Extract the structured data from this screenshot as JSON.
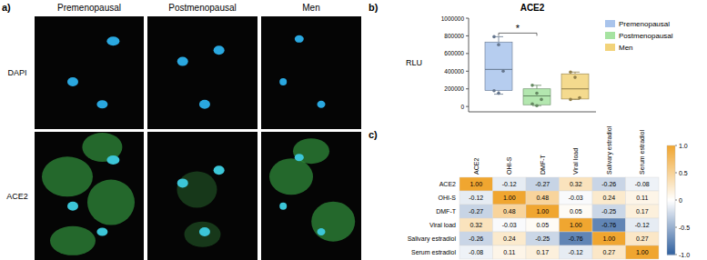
{
  "image_panel": {
    "label": "a)",
    "columns": [
      "Premenopausal",
      "Postmenopausal",
      "Men"
    ],
    "rows": [
      "DAPI",
      "ACE2"
    ]
  },
  "chart_data": [
    {
      "type": "box",
      "label": "b)",
      "title": "ACE2",
      "y_label": "RLU",
      "categories": [
        "Premenopausal",
        "Postmenopausal",
        "Men"
      ],
      "colors": [
        "#a9c4ec",
        "#a6e3a1",
        "#f2d37a"
      ],
      "boxes": [
        {
          "min": 140000,
          "q1": 180000,
          "median": 420000,
          "q3": 730000,
          "max": 790000
        },
        {
          "min": 10000,
          "q1": 20000,
          "median": 120000,
          "q3": 200000,
          "max": 240000
        },
        {
          "min": 80000,
          "q1": 85000,
          "median": 200000,
          "q3": 370000,
          "max": 390000
        }
      ],
      "points": [
        [
          790000,
          700000,
          400000,
          180000,
          150000
        ],
        [
          240000,
          150000,
          80000,
          30000,
          10000
        ],
        [
          390000,
          330000,
          100000,
          80000
        ]
      ],
      "ylim": [
        -60000,
        1000000
      ],
      "yticks": [
        0,
        200000,
        400000,
        600000,
        800000,
        1000000
      ],
      "legend": "right",
      "tick_labels": "y",
      "annotations": [
        "*"
      ]
    },
    {
      "type": "heatmap",
      "label": "c)",
      "x_categories": [
        "ACE2",
        "OHI-S",
        "DMF-T",
        "Viral load",
        "Salivary estradiol",
        "Serum estradiol"
      ],
      "y_categories": [
        "ACE2",
        "OHI-S",
        "DMF-T",
        "Viral load",
        "Salivary estradiol",
        "Serum estradiol"
      ],
      "values": [
        [
          1,
          -0.12,
          -0.27,
          0.32,
          -0.26,
          -0.08
        ],
        [
          -0.12,
          1,
          0.48,
          -0.03,
          0.24,
          0.11
        ],
        [
          -0.27,
          0.48,
          1,
          0.05,
          -0.25,
          0.17
        ],
        [
          0.32,
          -0.03,
          0.05,
          1,
          -0.76,
          -0.12
        ],
        [
          -0.26,
          0.24,
          -0.25,
          -0.76,
          1,
          0.27
        ],
        [
          -0.08,
          0.11,
          0.17,
          -0.12,
          0.27,
          1
        ]
      ],
      "value_labels": [
        [
          "1.00",
          "-0.12",
          "-0.27",
          "0.32",
          "-0.26",
          "-0.08"
        ],
        [
          "-0.12",
          "1.00",
          "0.48",
          "-0.03",
          "0.24",
          "0.11"
        ],
        [
          "-0.27",
          "0.48",
          "1.00",
          "0.05",
          "-0.25",
          "0.17"
        ],
        [
          "0.32",
          "-0.03",
          "0.05",
          "1.00",
          "-0.76",
          "-0.12"
        ],
        [
          "-0.26",
          "0.24",
          "-0.25",
          "-0.76",
          "1.00",
          "0.27"
        ],
        [
          "-0.08",
          "0.11",
          "0.17",
          "-0.12",
          "0.27",
          "1.00"
        ]
      ],
      "color_range": [
        -1,
        1
      ],
      "color_ticks": [
        {
          "value": -1,
          "label": "-1.0"
        },
        {
          "value": -0.5,
          "label": "-0.5"
        },
        0,
        {
          "value": 0.5,
          "label": "0.5"
        },
        {
          "value": 1,
          "label": "1.0"
        }
      ]
    }
  ]
}
